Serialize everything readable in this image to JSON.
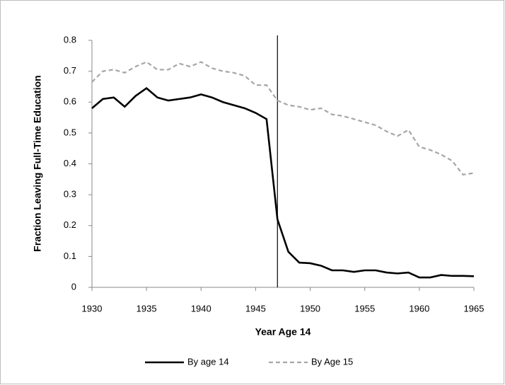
{
  "chart_data": {
    "type": "line",
    "xlabel": "Year Age 14",
    "ylabel": "Fraction Leaving Full-Time  Education",
    "x": [
      1930,
      1931,
      1932,
      1933,
      1934,
      1935,
      1936,
      1937,
      1938,
      1939,
      1940,
      1941,
      1942,
      1943,
      1944,
      1945,
      1946,
      1947,
      1948,
      1949,
      1950,
      1951,
      1952,
      1953,
      1954,
      1955,
      1956,
      1957,
      1958,
      1959,
      1960,
      1961,
      1962,
      1963,
      1964,
      1965
    ],
    "series": [
      {
        "name": "By age  14",
        "color": "#000000",
        "dash": "solid",
        "values": [
          0.58,
          0.61,
          0.615,
          0.585,
          0.62,
          0.645,
          0.615,
          0.605,
          0.61,
          0.615,
          0.625,
          0.615,
          0.6,
          0.59,
          0.58,
          0.565,
          0.545,
          0.22,
          0.115,
          0.08,
          0.078,
          0.07,
          0.055,
          0.055,
          0.05,
          0.055,
          0.055,
          0.048,
          0.045,
          0.048,
          0.032,
          0.032,
          0.04,
          0.037,
          0.037,
          0.036
        ]
      },
      {
        "name": "By Age 15",
        "color": "#a6a6a6",
        "dash": "dashed",
        "values": [
          0.665,
          0.7,
          0.705,
          0.695,
          0.715,
          0.73,
          0.705,
          0.705,
          0.725,
          0.715,
          0.73,
          0.71,
          0.7,
          0.695,
          0.685,
          0.655,
          0.655,
          0.605,
          0.59,
          0.585,
          0.575,
          0.58,
          0.56,
          0.555,
          0.545,
          0.535,
          0.525,
          0.505,
          0.49,
          0.51,
          0.455,
          0.445,
          0.43,
          0.41,
          0.365,
          0.37
        ]
      }
    ],
    "vline": 1947,
    "xlim": [
      1930,
      1965
    ],
    "xticks": [
      1930,
      1935,
      1940,
      1945,
      1950,
      1955,
      1960,
      1965
    ],
    "ylim": [
      0,
      0.8
    ],
    "yticks": [
      0,
      0.1,
      0.2,
      0.3,
      0.4,
      0.5,
      0.6,
      0.7,
      0.8
    ],
    "legend": "bottom"
  }
}
